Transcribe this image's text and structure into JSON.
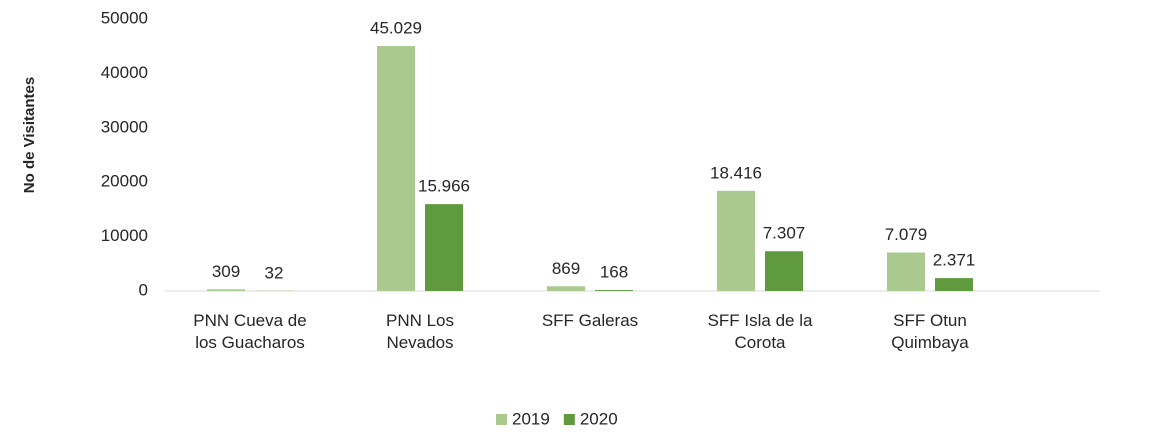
{
  "chart_data": {
    "type": "bar",
    "y_label": "No de Visitantes",
    "categories": [
      "PNN Cueva de los Guacharos",
      "PNN Los Nevados",
      "SFF Galeras",
      "SFF Isla de la Corota",
      "SFF Otun Quimbaya"
    ],
    "series": [
      {
        "name": "2019",
        "color": "#a9c98f",
        "values": [
          309,
          45029,
          869,
          18416,
          7079
        ],
        "value_labels": [
          "309",
          "45.029",
          "869",
          "18.416",
          "7.079"
        ]
      },
      {
        "name": "2020",
        "color": "#5f9a3e",
        "values": [
          32,
          15966,
          168,
          7307,
          2371
        ],
        "value_labels": [
          "32",
          "15.966",
          "168",
          "7.307",
          "2.371"
        ]
      }
    ],
    "ylim": [
      0,
      50000
    ],
    "yticks": [
      0,
      10000,
      20000,
      30000,
      40000,
      50000
    ],
    "grid": false,
    "legend": "bottom"
  }
}
